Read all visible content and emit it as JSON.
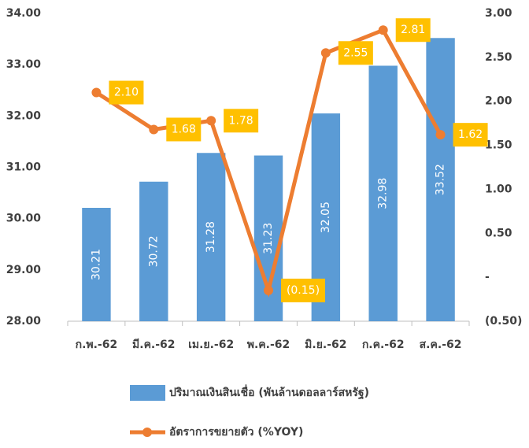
{
  "chart_data": {
    "type": "bar_line",
    "categories": [
      "ก.พ.-62",
      "มี.ค.-62",
      "เม.ย.-62",
      "พ.ค.-62",
      "มิ.ย.-62",
      "ก.ค.-62",
      "ส.ค.-62"
    ],
    "series": [
      {
        "name": "ปริมาณเงินสินเชื่อ (พันล้านดอลลาร์สหรัฐ)",
        "type": "bar",
        "color": "#5b9bd5",
        "axis": "y",
        "values": [
          30.21,
          30.72,
          31.28,
          31.23,
          32.05,
          32.98,
          33.52
        ]
      },
      {
        "name": "อัตราการขยายตัว (%YOY)",
        "type": "line",
        "color": "#ed7d31",
        "label_color": "#ffc000",
        "axis": "y2",
        "values": [
          2.1,
          1.68,
          1.78,
          -0.15,
          2.55,
          2.81,
          1.62
        ],
        "value_labels": [
          "2.10",
          "1.68",
          "1.78",
          "(0.15)",
          "2.55",
          "2.81",
          "1.62"
        ]
      }
    ],
    "ylim": [
      28,
      34
    ],
    "yticks": [
      {
        "value": 28,
        "label": "28.00"
      },
      {
        "value": 29,
        "label": "29.00"
      },
      {
        "value": 30,
        "label": "30.00"
      },
      {
        "value": 31,
        "label": "31.00"
      },
      {
        "value": 32,
        "label": "32.00"
      },
      {
        "value": 33,
        "label": "33.00"
      },
      {
        "value": 34,
        "label": "34.00"
      }
    ],
    "y2lim": [
      -0.5,
      3
    ],
    "y2ticks": [
      {
        "value": -0.5,
        "label": "(0.50)"
      },
      {
        "value": 0,
        "label": "-"
      },
      {
        "value": 0.5,
        "label": "0.50"
      },
      {
        "value": 1,
        "label": "1.00"
      },
      {
        "value": 1.5,
        "label": "1.50"
      },
      {
        "value": 2,
        "label": "2.00"
      },
      {
        "value": 2.5,
        "label": "2.50"
      },
      {
        "value": 3,
        "label": "3.00"
      }
    ],
    "legend": "bottom"
  }
}
